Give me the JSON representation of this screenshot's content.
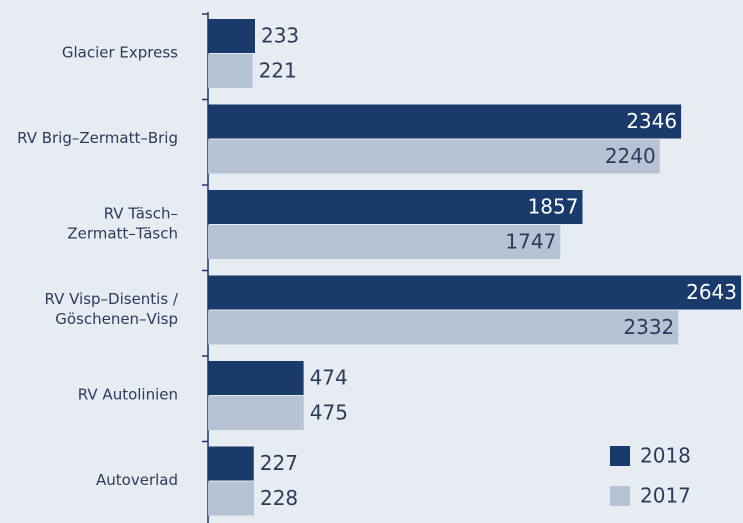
{
  "chart_data": {
    "type": "bar",
    "orientation": "horizontal",
    "categories": [
      [
        "Glacier Express"
      ],
      [
        "RV Brig–Zermatt–Brig"
      ],
      [
        "RV Täsch–",
        "Zermatt–Täsch"
      ],
      [
        "RV Visp–Disentis /",
        "Göschenen–Visp"
      ],
      [
        "RV Autolinien"
      ],
      [
        "Autoverlad"
      ]
    ],
    "series": [
      {
        "name": "2018",
        "color": "#1b3a6c",
        "values": [
          233,
          2346,
          1857,
          2643,
          474,
          227
        ]
      },
      {
        "name": "2017",
        "color": "#b5c3d5",
        "values": [
          221,
          2240,
          1747,
          2332,
          475,
          228
        ]
      }
    ],
    "legend": "lower right"
  }
}
